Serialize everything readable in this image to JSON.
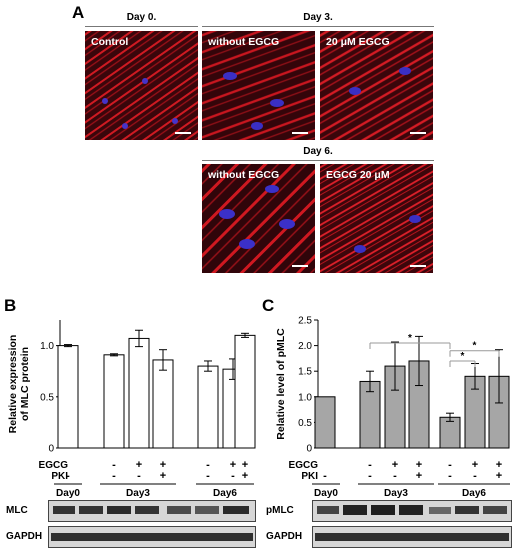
{
  "panel_a": {
    "letter": "A",
    "day0_header": "Day 0.",
    "day3_header": "Day 3.",
    "day6_header": "Day 6.",
    "images": [
      {
        "label": "Control"
      },
      {
        "label": "without EGCG"
      },
      {
        "label": "20 μM EGCG"
      },
      {
        "label": "without EGCG"
      },
      {
        "label": "EGCG 20 μM"
      }
    ]
  },
  "panel_b": {
    "letter": "B",
    "blot_labels": [
      "MLC",
      "GAPDH"
    ]
  },
  "panel_c": {
    "letter": "C",
    "blot_labels": [
      "pMLC",
      "GAPDH"
    ]
  },
  "chart_data": [
    {
      "type": "bar",
      "panel": "B",
      "ylabel": "Relative expression\nof MLC protein",
      "ylim": [
        0,
        1.25
      ],
      "yticks": [
        "0",
        "0.5",
        "1.0"
      ],
      "categories": [
        "Day0",
        "Day3 -",
        "Day3 +EGCG",
        "Day3 +EGCG+PKI",
        "Day6 -",
        "Day6 +EGCG",
        "Day6 +EGCG+PKI"
      ],
      "values": [
        1.0,
        0.91,
        1.07,
        0.86,
        0.8,
        0.77,
        1.1
      ],
      "errors": [
        0.01,
        0.01,
        0.08,
        0.1,
        0.05,
        0.1,
        0.02
      ],
      "bar_color": "#ffffff",
      "row_labels": [
        "EGCG",
        "PKI"
      ],
      "egcg_marks": [
        "-",
        "-",
        "+",
        "+",
        "-",
        "+",
        "+"
      ],
      "pki_marks": [
        "-",
        "-",
        "-",
        "+",
        "-",
        "-",
        "+"
      ],
      "group_labels": [
        "Day0",
        "Day3",
        "Day6"
      ]
    },
    {
      "type": "bar",
      "panel": "C",
      "ylabel": "Relative level of pMLC",
      "ylim": [
        0,
        2.5
      ],
      "yticks": [
        "0",
        "0.5",
        "1.0",
        "1.5",
        "2.0",
        "2.5"
      ],
      "categories": [
        "Day0",
        "Day3 -",
        "Day3 +EGCG",
        "Day3 +EGCG+PKI",
        "Day6 -",
        "Day6 +EGCG",
        "Day6 +EGCG+PKI"
      ],
      "values": [
        1.0,
        1.3,
        1.6,
        1.7,
        0.6,
        1.4,
        1.4
      ],
      "errors": [
        0.0,
        0.2,
        0.47,
        0.48,
        0.08,
        0.25,
        0.52
      ],
      "bar_color": "#a6a6a6",
      "row_labels": [
        "EGCG",
        "PKI"
      ],
      "egcg_marks": [
        "-",
        "-",
        "+",
        "+",
        "-",
        "+",
        "+"
      ],
      "pki_marks": [
        "-",
        "-",
        "-",
        "+",
        "-",
        "-",
        "+"
      ],
      "group_labels": [
        "Day0",
        "Day3",
        "Day6"
      ],
      "significance": [
        "*",
        "*",
        "*"
      ]
    }
  ]
}
